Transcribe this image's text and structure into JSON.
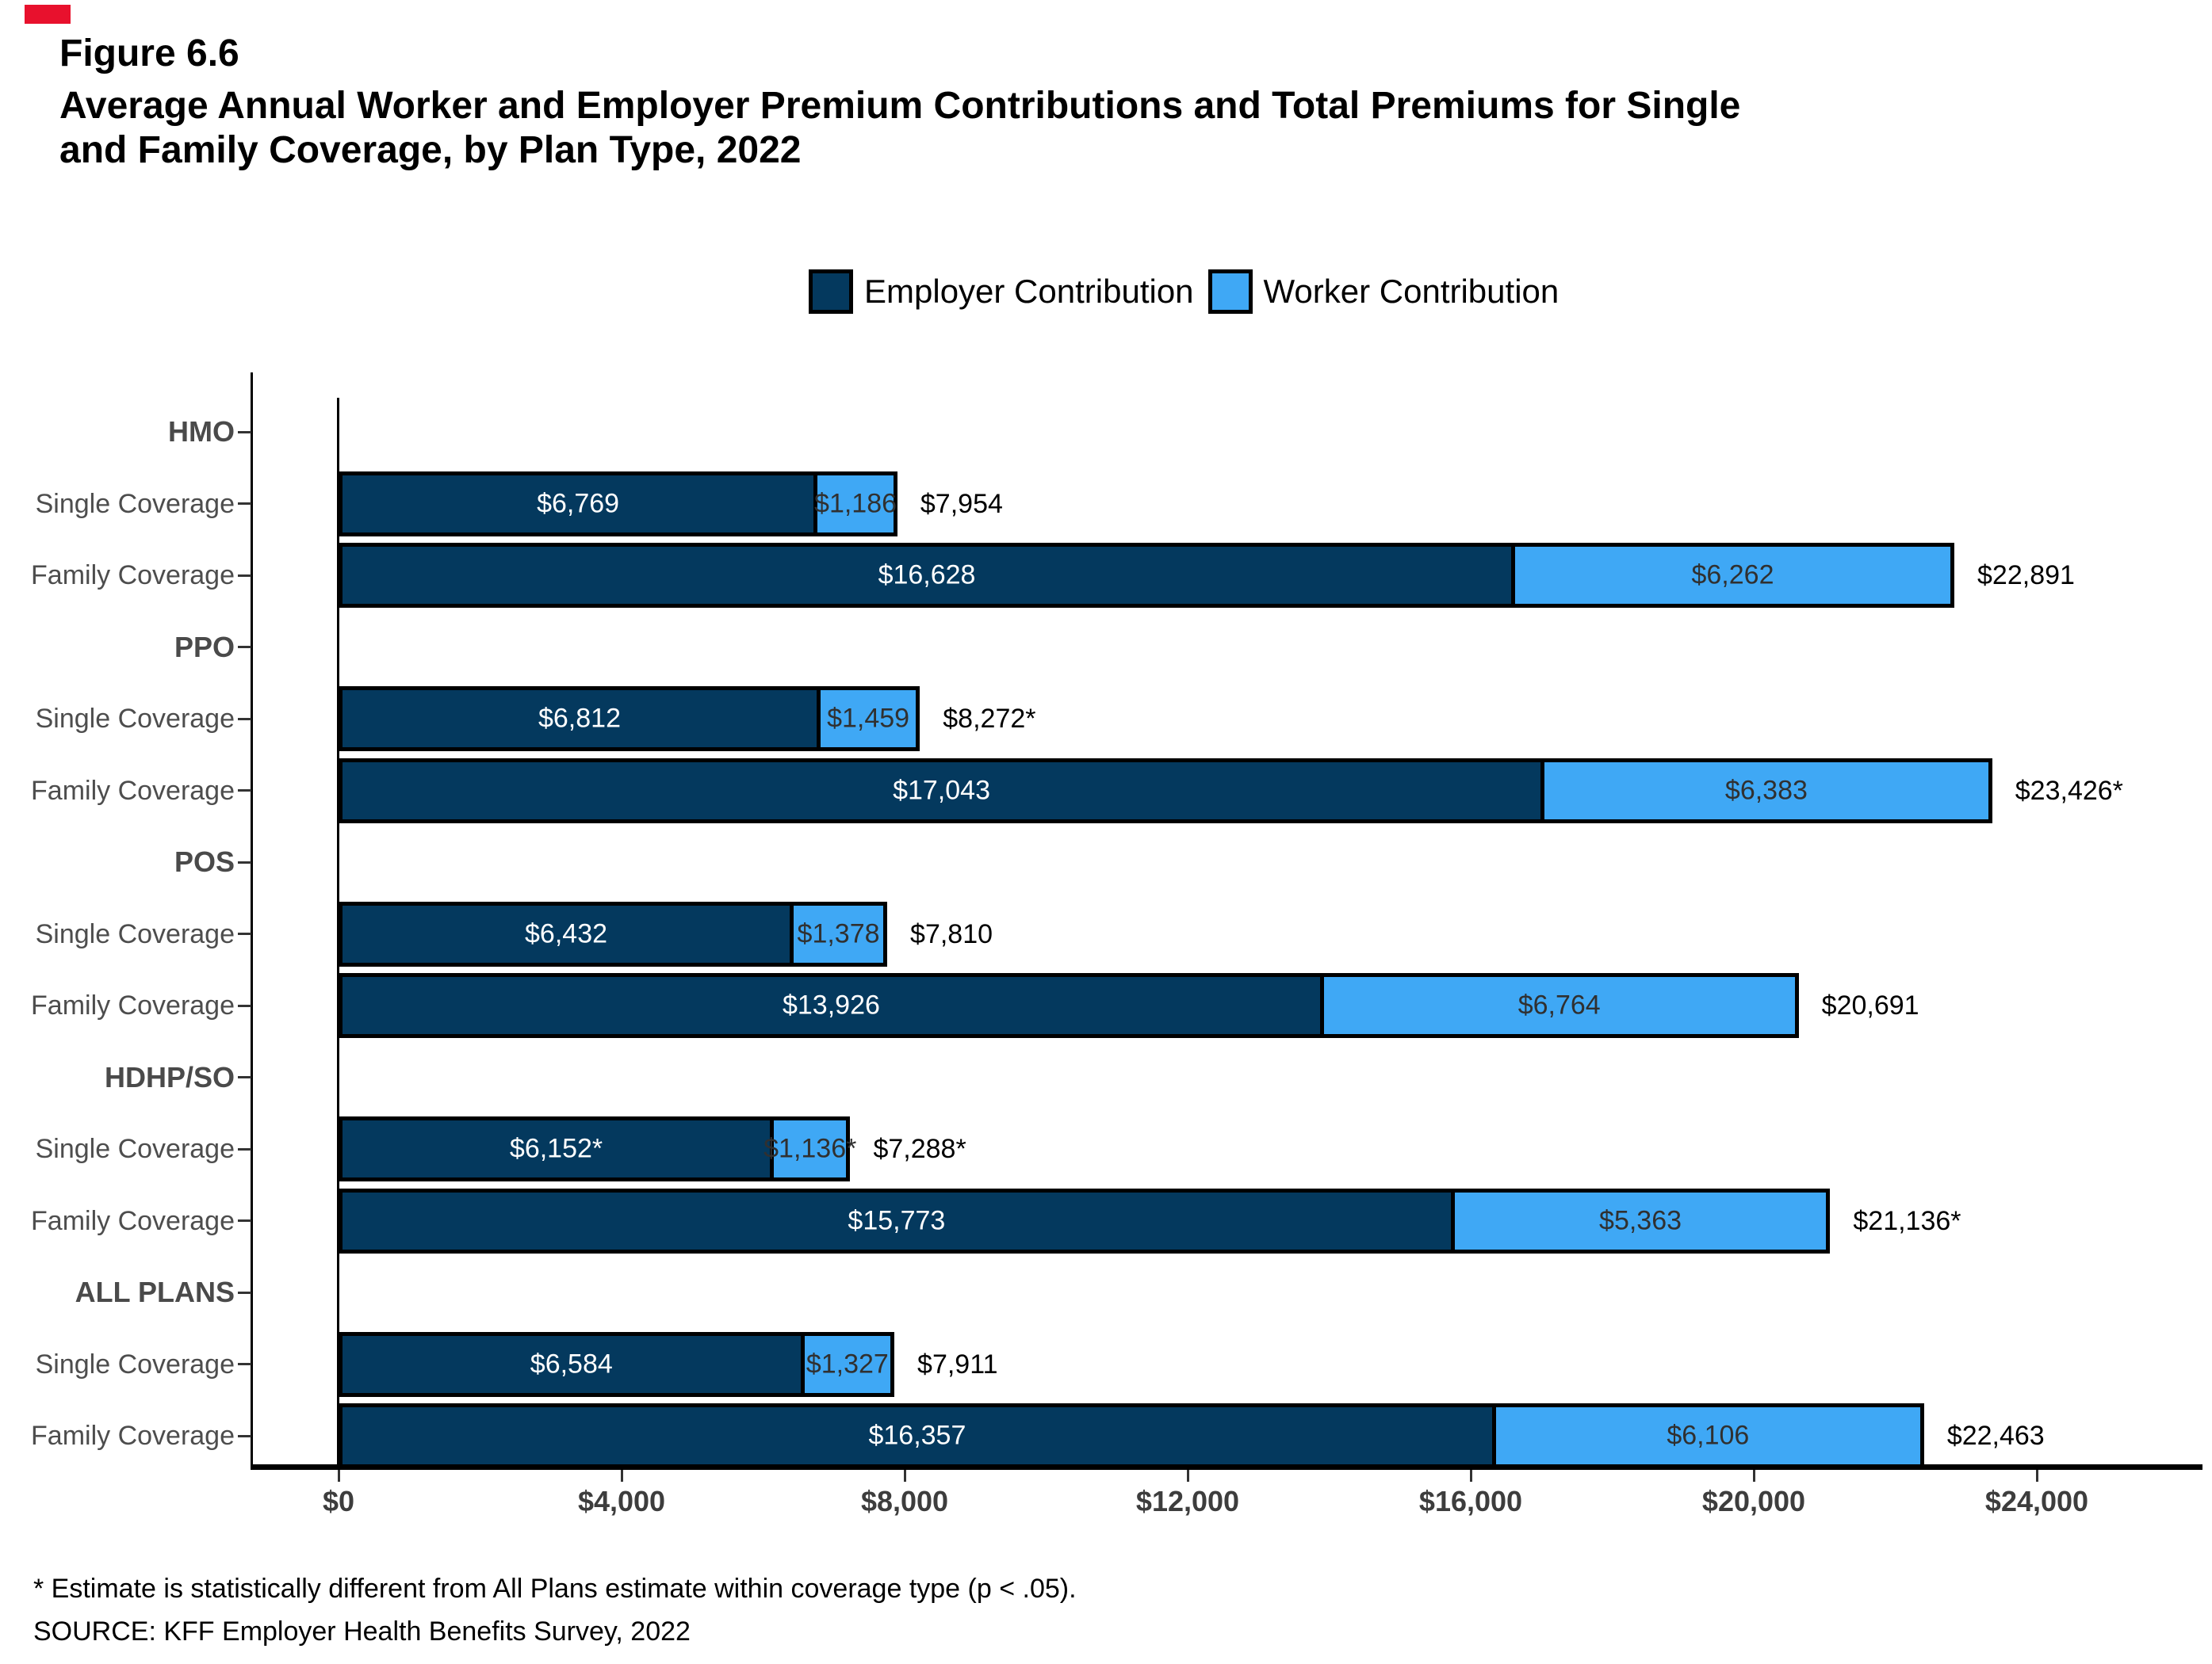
{
  "figure_label": "Figure 6.6",
  "title_line1": "Average Annual Worker and Employer Premium Contributions and Total Premiums for Single",
  "title_line2": "and Family Coverage, by Plan Type, 2022",
  "legend": [
    {
      "label": "Employer Contribution",
      "color": "#04395E"
    },
    {
      "label": "Worker Contribution",
      "color": "#3FA8F5"
    }
  ],
  "colors": {
    "employer_bar": "#04395E",
    "worker_bar": "#3FA8F5",
    "bar_outline": "#000000",
    "red_mark": "#E8112D"
  },
  "footnote": "* Estimate is statistically different from All Plans estimate within coverage type (p < .05).",
  "source": "SOURCE: KFF Employer Health Benefits Survey, 2022",
  "chart_data": {
    "type": "bar",
    "orientation": "horizontal",
    "stacked": true,
    "series_names": [
      "Employer Contribution",
      "Worker Contribution"
    ],
    "x_axis": {
      "ticks": [
        "$0",
        "$4,000",
        "$8,000",
        "$12,000",
        "$16,000",
        "$20,000",
        "$24,000"
      ],
      "values": [
        0,
        4000,
        8000,
        12000,
        16000,
        20000,
        24000
      ],
      "max": 24000
    },
    "groups": [
      {
        "name": "HMO",
        "rows": [
          {
            "label": "Single Coverage",
            "employer": 6769,
            "worker": 1186,
            "total": 7954,
            "employer_label": "$6,769",
            "worker_label": "$1,186",
            "total_label": "$7,954"
          },
          {
            "label": "Family Coverage",
            "employer": 16628,
            "worker": 6262,
            "total": 22891,
            "employer_label": "$16,628",
            "worker_label": "$6,262",
            "total_label": "$22,891"
          }
        ]
      },
      {
        "name": "PPO",
        "rows": [
          {
            "label": "Single Coverage",
            "employer": 6812,
            "worker": 1459,
            "total": 8272,
            "employer_label": "$6,812",
            "worker_label": "$1,459",
            "total_label": "$8,272*"
          },
          {
            "label": "Family Coverage",
            "employer": 17043,
            "worker": 6383,
            "total": 23426,
            "employer_label": "$17,043",
            "worker_label": "$6,383",
            "total_label": "$23,426*"
          }
        ]
      },
      {
        "name": "POS",
        "rows": [
          {
            "label": "Single Coverage",
            "employer": 6432,
            "worker": 1378,
            "total": 7810,
            "employer_label": "$6,432",
            "worker_label": "$1,378",
            "total_label": "$7,810"
          },
          {
            "label": "Family Coverage",
            "employer": 13926,
            "worker": 6764,
            "total": 20691,
            "employer_label": "$13,926",
            "worker_label": "$6,764",
            "total_label": "$20,691"
          }
        ]
      },
      {
        "name": "HDHP/SO",
        "rows": [
          {
            "label": "Single Coverage",
            "employer": 6152,
            "worker": 1136,
            "total": 7288,
            "employer_label": "$6,152*",
            "worker_label": "$1,136*",
            "total_label": "$7,288*"
          },
          {
            "label": "Family Coverage",
            "employer": 15773,
            "worker": 5363,
            "total": 21136,
            "employer_label": "$15,773",
            "worker_label": "$5,363",
            "total_label": "$21,136*"
          }
        ]
      },
      {
        "name": "ALL PLANS",
        "rows": [
          {
            "label": "Single Coverage",
            "employer": 6584,
            "worker": 1327,
            "total": 7911,
            "employer_label": "$6,584",
            "worker_label": "$1,327",
            "total_label": "$7,911"
          },
          {
            "label": "Family Coverage",
            "employer": 16357,
            "worker": 6106,
            "total": 22463,
            "employer_label": "$16,357",
            "worker_label": "$6,106",
            "total_label": "$22,463"
          }
        ]
      }
    ]
  }
}
